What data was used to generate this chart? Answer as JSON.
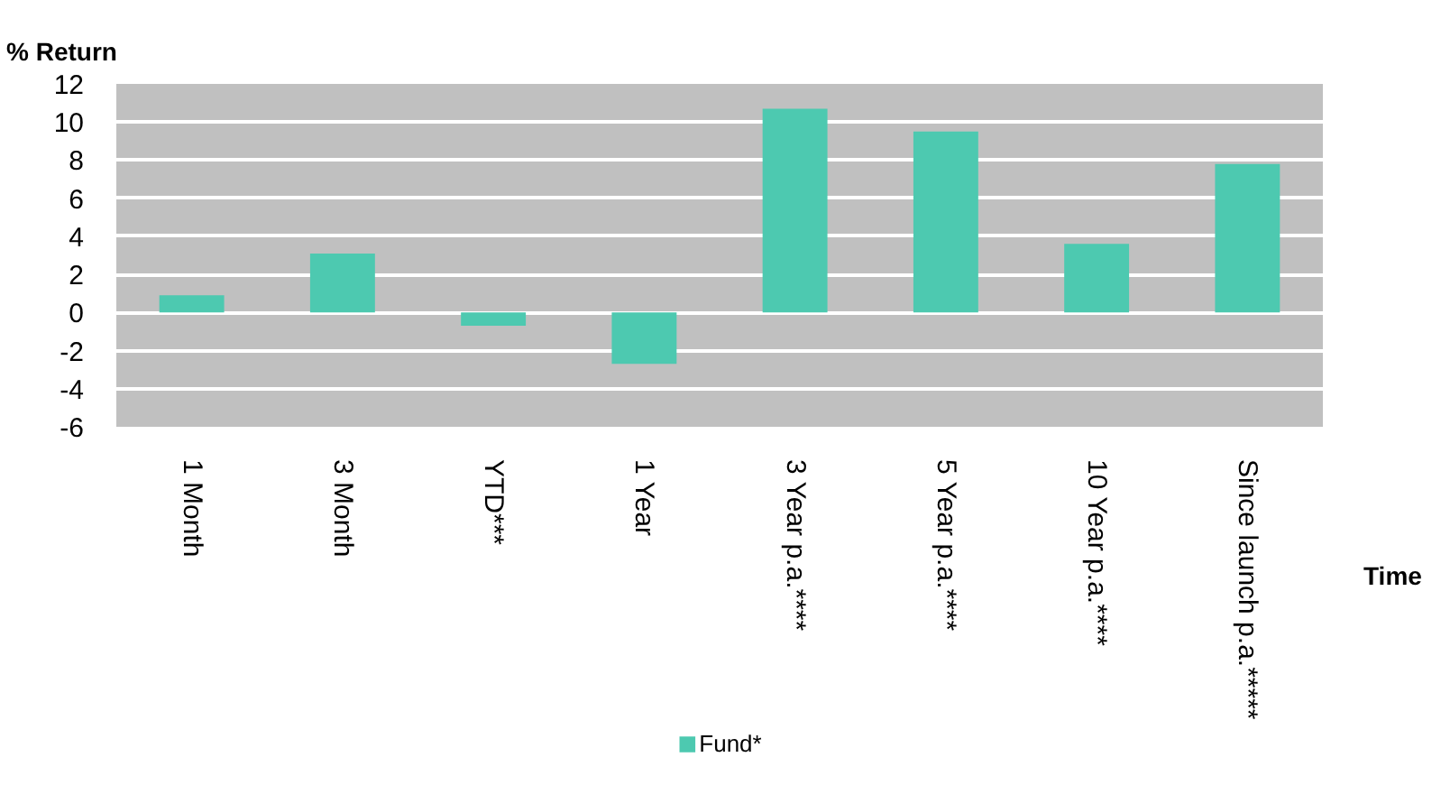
{
  "chart_data": {
    "type": "bar",
    "ylabel": "% Return",
    "xlabel": "Time",
    "categories": [
      "1 Month",
      "3 Month",
      "YTD***",
      "1 Year",
      "3 Year p.a.****",
      "5 Year p.a.****",
      "10 Year p.a.****",
      "Since launch p.a.*****"
    ],
    "series": [
      {
        "name": "Fund*",
        "color": "#4dc9b0",
        "values": [
          0.9,
          3.1,
          -0.7,
          -2.7,
          10.7,
          9.5,
          3.6,
          7.8
        ]
      }
    ],
    "ylim": [
      -6,
      12
    ],
    "yticks": [
      -6,
      -4,
      -2,
      0,
      2,
      4,
      6,
      8,
      10,
      12
    ],
    "grid": "y",
    "legend": "bottom"
  }
}
